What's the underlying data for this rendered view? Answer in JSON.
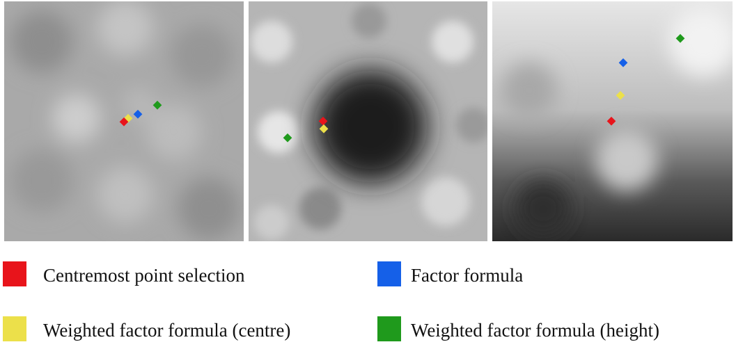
{
  "legend": [
    {
      "label": "Centremost point selection",
      "color": "#e8141b"
    },
    {
      "label": "Factor formula",
      "color": "#1560e8"
    },
    {
      "label": "Weighted factor formula (centre)",
      "color": "#ece04a"
    },
    {
      "label": "Weighted factor formula (height)",
      "color": "#1f9a1c"
    }
  ]
}
